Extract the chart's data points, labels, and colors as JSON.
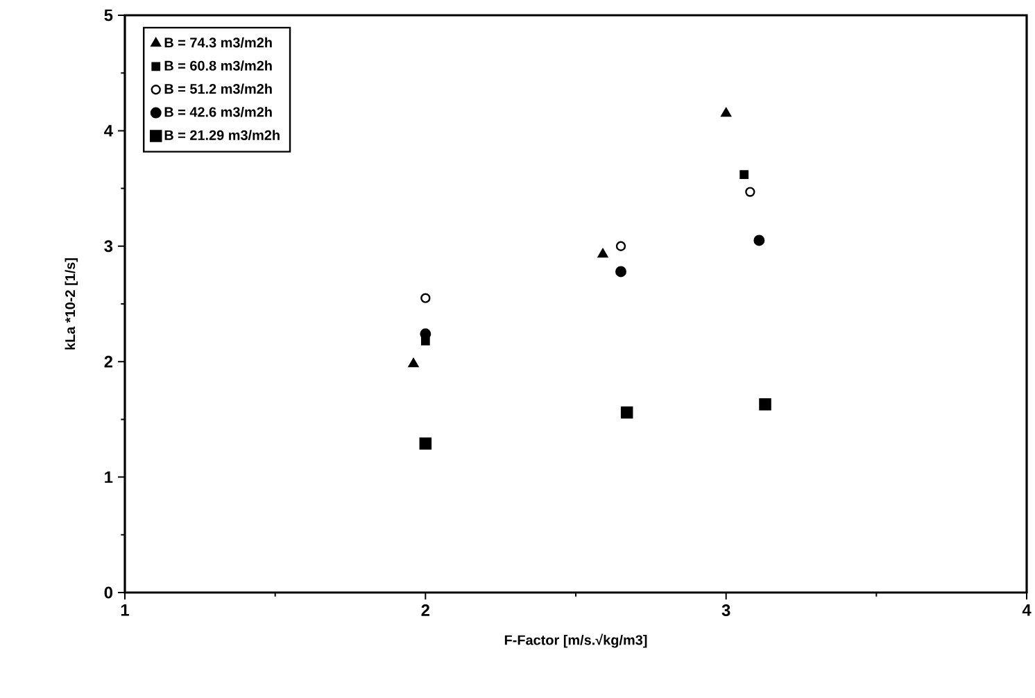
{
  "chart_data": {
    "type": "scatter",
    "xlabel": "F-Factor     [m/s.√kg/m3]",
    "ylabel": "kLa     *10-2     [1/s]",
    "xlim": [
      1,
      4
    ],
    "xticks": [
      1,
      2,
      3,
      4
    ],
    "ylim": [
      0,
      5
    ],
    "yticks": [
      0,
      1,
      2,
      3,
      4,
      5
    ],
    "grid": false,
    "legend": "top left",
    "series": [
      {
        "name": "B = 74.3 m3/m2h",
        "color": "#000000",
        "marker": "triangle",
        "x": [
          1.96,
          2.59,
          3.0
        ],
        "values": [
          1.98,
          2.93,
          4.15
        ]
      },
      {
        "name": "B = 60.8 m3/m2h",
        "color": "#000000",
        "marker": "square",
        "x": [
          2.0,
          3.06
        ],
        "values": [
          2.18,
          3.62
        ]
      },
      {
        "name": "B = 51.2 m3/m2h",
        "color": "#ffffff",
        "marker": "circle",
        "x": [
          2.0,
          2.65,
          3.08
        ],
        "values": [
          2.55,
          3.0,
          3.47
        ]
      },
      {
        "name": "B = 42.6 m3/m2h",
        "color": "#000000",
        "marker": "circle",
        "x": [
          2.0,
          2.65,
          3.11
        ],
        "values": [
          2.24,
          2.78,
          3.05
        ]
      },
      {
        "name": "B = 21.29 m3/m2h",
        "color": "#000000",
        "marker": "square",
        "x": [
          2.0,
          2.67,
          3.13
        ],
        "values": [
          1.29,
          1.56,
          1.63
        ]
      }
    ]
  }
}
